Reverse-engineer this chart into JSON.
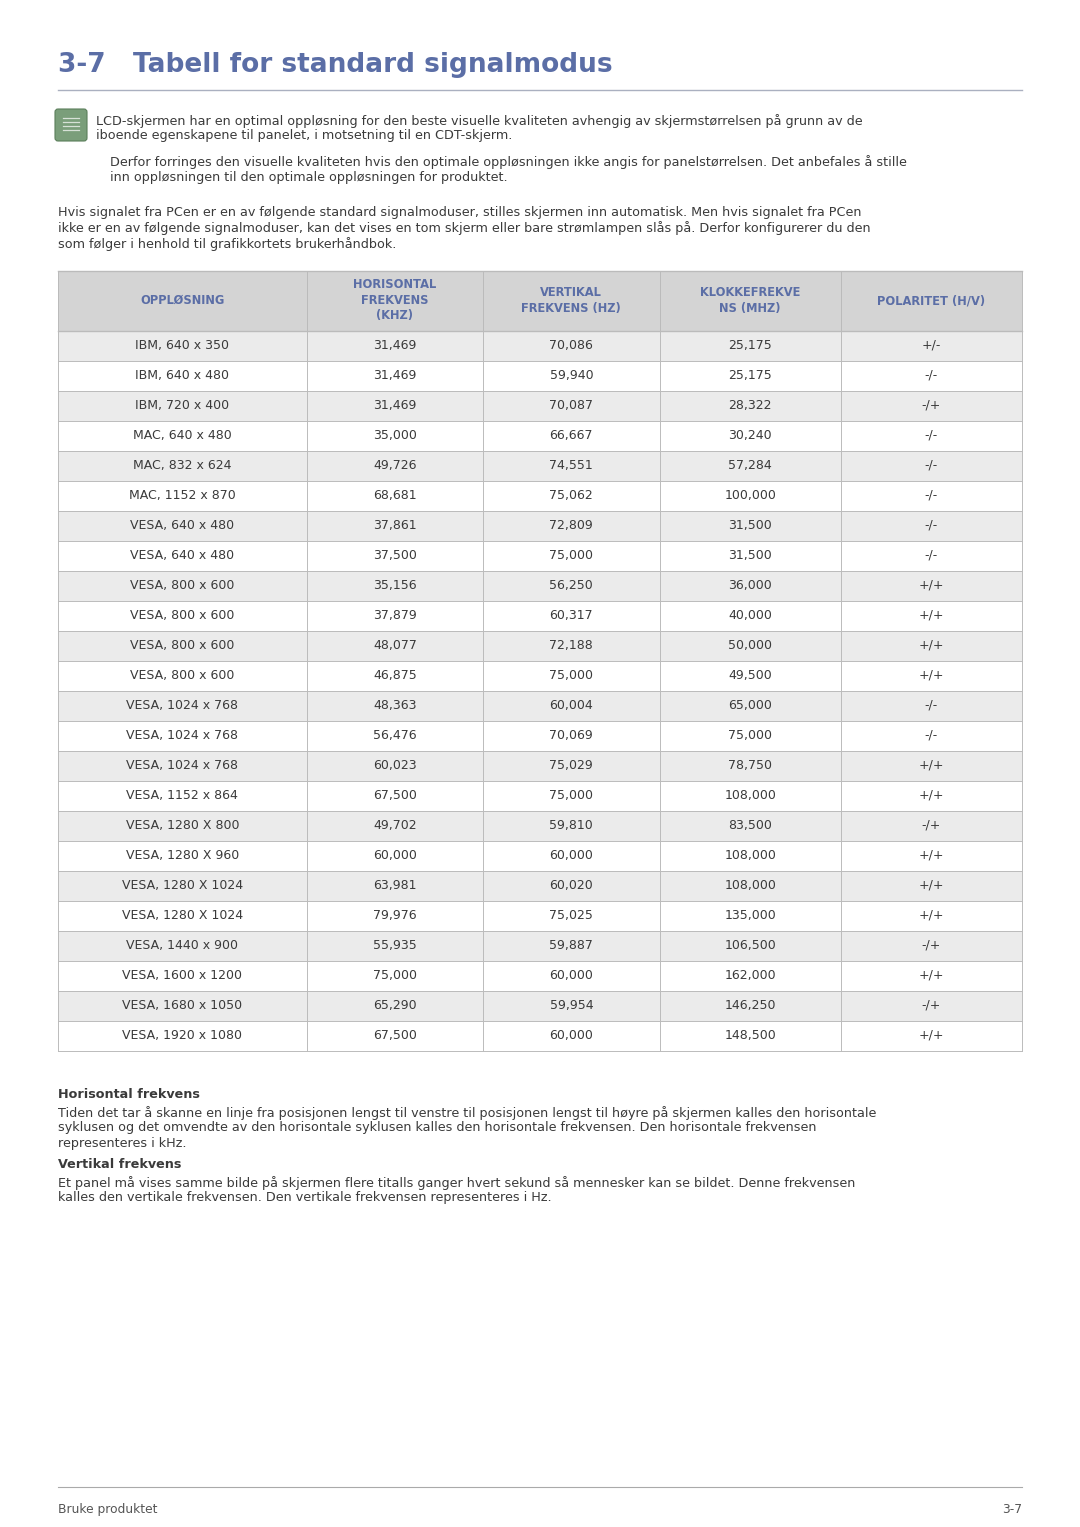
{
  "title_num": "3-7",
  "title_text": "Tabell for standard signalmodus",
  "title_color": "#5b6ea6",
  "page_bg": "#ffffff",
  "note_text1_line1": "LCD-skjermen har en optimal oppløsning for den beste visuelle kvaliteten avhengig av skjermstørrelsen på grunn av de",
  "note_text1_line2": "iboende egenskapene til panelet, i motsetning til en CDT-skjerm.",
  "note_text2_line1": "Derfor forringes den visuelle kvaliteten hvis den optimale oppløsningen ikke angis for panelstørrelsen. Det anbefales å stille",
  "note_text2_line2": "inn oppløsningen til den optimale oppløsningen for produktet.",
  "intro_line1": "Hvis signalet fra PCen er en av følgende standard signalmoduser, stilles skjermen inn automatisk. Men hvis signalet fra PCen",
  "intro_line2": "ikke er en av følgende signalmoduser, kan det vises en tom skjerm eller bare strømlampen slås på. Derfor konfigurerer du den",
  "intro_line3": "som følger i henhold til grafikkortets brukerhåndbok.",
  "col_headers": [
    "OPPLØSNING",
    "HORISONTAL\nFREKVENS\n(KHZ)",
    "VERTIKAL\nFREKVENS (HZ)",
    "KLOKKEFREKVE\nNS (MHZ)",
    "POLARITET (H/V)"
  ],
  "col_header_color": "#5b6ea6",
  "header_bg": "#d4d4d4",
  "row_bg_odd": "#ebebeb",
  "row_bg_even": "#ffffff",
  "table_line_color": "#bbbbbb",
  "table_data": [
    [
      "IBM, 640 x 350",
      "31,469",
      "70,086",
      "25,175",
      "+/-"
    ],
    [
      "IBM, 640 x 480",
      "31,469",
      "59,940",
      "25,175",
      "-/-"
    ],
    [
      "IBM, 720 x 400",
      "31,469",
      "70,087",
      "28,322",
      "-/+"
    ],
    [
      "MAC, 640 x 480",
      "35,000",
      "66,667",
      "30,240",
      "-/-"
    ],
    [
      "MAC, 832 x 624",
      "49,726",
      "74,551",
      "57,284",
      "-/-"
    ],
    [
      "MAC, 1152 x 870",
      "68,681",
      "75,062",
      "100,000",
      "-/-"
    ],
    [
      "VESA, 640 x 480",
      "37,861",
      "72,809",
      "31,500",
      "-/-"
    ],
    [
      "VESA, 640 x 480",
      "37,500",
      "75,000",
      "31,500",
      "-/-"
    ],
    [
      "VESA, 800 x 600",
      "35,156",
      "56,250",
      "36,000",
      "+/+"
    ],
    [
      "VESA, 800 x 600",
      "37,879",
      "60,317",
      "40,000",
      "+/+"
    ],
    [
      "VESA, 800 x 600",
      "48,077",
      "72,188",
      "50,000",
      "+/+"
    ],
    [
      "VESA, 800 x 600",
      "46,875",
      "75,000",
      "49,500",
      "+/+"
    ],
    [
      "VESA, 1024 x 768",
      "48,363",
      "60,004",
      "65,000",
      "-/-"
    ],
    [
      "VESA, 1024 x 768",
      "56,476",
      "70,069",
      "75,000",
      "-/-"
    ],
    [
      "VESA, 1024 x 768",
      "60,023",
      "75,029",
      "78,750",
      "+/+"
    ],
    [
      "VESA, 1152 x 864",
      "67,500",
      "75,000",
      "108,000",
      "+/+"
    ],
    [
      "VESA, 1280 X 800",
      "49,702",
      "59,810",
      "83,500",
      "-/+"
    ],
    [
      "VESA, 1280 X 960",
      "60,000",
      "60,000",
      "108,000",
      "+/+"
    ],
    [
      "VESA, 1280 X 1024",
      "63,981",
      "60,020",
      "108,000",
      "+/+"
    ],
    [
      "VESA, 1280 X 1024",
      "79,976",
      "75,025",
      "135,000",
      "+/+"
    ],
    [
      "VESA, 1440 x 900",
      "55,935",
      "59,887",
      "106,500",
      "-/+"
    ],
    [
      "VESA, 1600 x 1200",
      "75,000",
      "60,000",
      "162,000",
      "+/+"
    ],
    [
      "VESA, 1680 x 1050",
      "65,290",
      "59,954",
      "146,250",
      "-/+"
    ],
    [
      "VESA, 1920 x 1080",
      "67,500",
      "60,000",
      "148,500",
      "+/+"
    ]
  ],
  "footer_bold1": "Horisontal frekvens",
  "footer_body1_l1": "Tiden det tar å skanne en linje fra posisjonen lengst til venstre til posisjonen lengst til høyre på skjermen kalles den horisontale",
  "footer_body1_l2": "syklusen og det omvendte av den horisontale syklusen kalles den horisontale frekvensen. Den horisontale frekvensen",
  "footer_body1_l3": "representeres i kHz.",
  "footer_bold2": "Vertikal frekvens",
  "footer_body2_l1": "Et panel må vises samme bilde på skjermen flere titalls ganger hvert sekund så mennesker kan se bildet. Denne frekvensen",
  "footer_body2_l2": "kalles den vertikale frekvensen. Den vertikale frekvensen representeres i Hz.",
  "footer_page_left": "Bruke produktet",
  "footer_page_right": "3-7",
  "text_color": "#3a3a3a",
  "text_color_light": "#555555"
}
